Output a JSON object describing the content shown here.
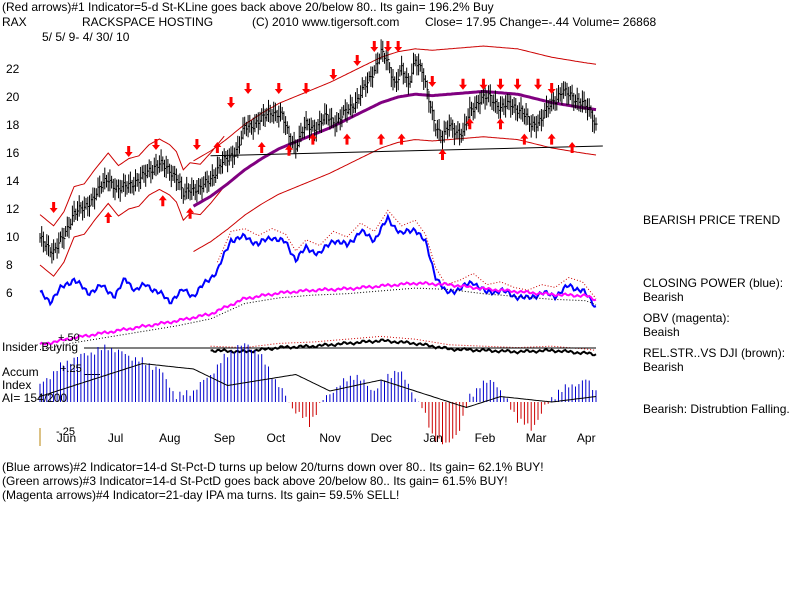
{
  "header": {
    "line1": "(Red arrows)#1 Indicator=5-d St-KLine goes back above 20/below 80.. Its gain= 196.2% Buy",
    "symbol": "RAX",
    "company": "RACKSPACE HOSTING",
    "copyright": "(C) 2010 www.tigersoft.com",
    "quote": "Close=  17.95  Change=-.44 Volume= 26868",
    "dates": "5/ 5/ 9-  4/ 30/ 10"
  },
  "footer": {
    "line1": "(Blue arrows)#2 Indicator=14-d St-Pct-D turns up below 20/turns down over 80.. Its gain= 62.1% BUY!",
    "line2": "(Green arrows)#3 Indicator=14-d St-PctD goes back above 20/below 80.. Its gain= 61.5% BUY!",
    "line3": "(Magenta arrows)#4 Indicator=21-day IPA ma turns. Its gain= 59.5% SELL!"
  },
  "panel_labels": {
    "insider": "Insider Buying",
    "plus50": "+.50",
    "plus25": "+.25",
    "minus25": "-.25",
    "accum": "Accum",
    "index": "Index",
    "ai": "AI= 154/200"
  },
  "right_panel": {
    "trend": "BEARISH PRICE TREND",
    "cp_title": "CLOSING POWER (blue):",
    "cp_value": "Bearish",
    "obv_title": "OBV (magenta):",
    "obv_value": "Beaish",
    "rs_title": "REL.STR..VS DJI (brown):",
    "rs_value": "Bearish",
    "dist": "Bearish: Distrubtion Falling."
  },
  "colors": {
    "price": "#000000",
    "band": "#cc0000",
    "ma": "#800080",
    "closing_power": "#0000ff",
    "obv": "#ff00ff",
    "rel_str": "#5a2800",
    "accum_pos": "#0000cc",
    "accum_neg": "#cc0000",
    "arrow": "#ff0000",
    "support": "#000000"
  },
  "chart_data": {
    "type": "line",
    "title": "RACKSPACE HOSTING (RAX) daily price with TigerSoft indicators",
    "y_ticks": [
      6,
      8,
      10,
      12,
      14,
      16,
      18,
      20,
      22
    ],
    "ylim": [
      4.5,
      24
    ],
    "x_ticks": [
      "Jun",
      "Jul",
      "Aug",
      "Sep",
      "Oct",
      "Nov",
      "Dec",
      "Jan",
      "Feb",
      "Mar",
      "Apr"
    ],
    "price_keypoints": [
      [
        0,
        9.8
      ],
      [
        8,
        9.0
      ],
      [
        14,
        10.0
      ],
      [
        20,
        11.8
      ],
      [
        26,
        12.0
      ],
      [
        32,
        13.0
      ],
      [
        40,
        14.2
      ],
      [
        46,
        13.3
      ],
      [
        52,
        13.8
      ],
      [
        58,
        14.0
      ],
      [
        64,
        14.8
      ],
      [
        70,
        15.2
      ],
      [
        76,
        14.8
      ],
      [
        80,
        14.3
      ],
      [
        84,
        13.0
      ],
      [
        88,
        13.5
      ],
      [
        94,
        13.4
      ],
      [
        100,
        14.2
      ],
      [
        108,
        15.4
      ],
      [
        116,
        16.3
      ],
      [
        120,
        17.8
      ],
      [
        124,
        18.0
      ],
      [
        130,
        18.4
      ],
      [
        136,
        19.0
      ],
      [
        142,
        18.6
      ],
      [
        146,
        17.2
      ],
      [
        150,
        16.5
      ],
      [
        156,
        18.0
      ],
      [
        162,
        17.8
      ],
      [
        168,
        18.6
      ],
      [
        174,
        18.2
      ],
      [
        180,
        19.0
      ],
      [
        186,
        19.8
      ],
      [
        192,
        21.0
      ],
      [
        196,
        22.0
      ],
      [
        200,
        23.2
      ],
      [
        204,
        22.4
      ],
      [
        208,
        21.0
      ],
      [
        212,
        22.0
      ],
      [
        216,
        20.8
      ],
      [
        220,
        22.8
      ],
      [
        224,
        21.8
      ],
      [
        228,
        19.8
      ],
      [
        232,
        18.0
      ],
      [
        236,
        17.0
      ],
      [
        240,
        18.0
      ],
      [
        244,
        17.6
      ],
      [
        248,
        17.3
      ],
      [
        252,
        19.0
      ],
      [
        258,
        19.8
      ],
      [
        264,
        20.0
      ],
      [
        270,
        19.2
      ],
      [
        276,
        19.5
      ],
      [
        282,
        19.0
      ],
      [
        288,
        18.0
      ],
      [
        294,
        18.4
      ],
      [
        300,
        19.6
      ],
      [
        306,
        20.4
      ],
      [
        312,
        20.0
      ],
      [
        318,
        19.6
      ],
      [
        322,
        19.0
      ],
      [
        326,
        18.0
      ]
    ],
    "moving_average_keypoints": [
      [
        90,
        12.2
      ],
      [
        100,
        12.9
      ],
      [
        110,
        13.8
      ],
      [
        120,
        14.8
      ],
      [
        130,
        15.6
      ],
      [
        140,
        16.3
      ],
      [
        150,
        16.8
      ],
      [
        160,
        17.3
      ],
      [
        170,
        17.8
      ],
      [
        180,
        18.4
      ],
      [
        190,
        19.0
      ],
      [
        200,
        19.6
      ],
      [
        210,
        20.0
      ],
      [
        220,
        20.2
      ],
      [
        230,
        20.1
      ],
      [
        240,
        20.2
      ],
      [
        250,
        20.3
      ],
      [
        260,
        20.4
      ],
      [
        270,
        20.3
      ],
      [
        280,
        20.2
      ],
      [
        290,
        19.9
      ],
      [
        300,
        19.6
      ],
      [
        310,
        19.4
      ],
      [
        320,
        19.2
      ],
      [
        326,
        19.1
      ]
    ],
    "band_width": 1.8,
    "support_line": {
      "start": [
        100,
        15.8
      ],
      "end": [
        330,
        16.5
      ]
    },
    "closing_power_keypoints": [
      [
        0,
        6.0
      ],
      [
        6,
        5.4
      ],
      [
        12,
        6.3
      ],
      [
        20,
        7.0
      ],
      [
        28,
        6.0
      ],
      [
        36,
        6.5
      ],
      [
        44,
        5.8
      ],
      [
        50,
        7.0
      ],
      [
        56,
        6.2
      ],
      [
        62,
        6.6
      ],
      [
        70,
        6.0
      ],
      [
        76,
        5.4
      ],
      [
        84,
        6.2
      ],
      [
        90,
        5.8
      ],
      [
        96,
        6.6
      ],
      [
        104,
        7.6
      ],
      [
        112,
        9.8
      ],
      [
        120,
        10.0
      ],
      [
        128,
        9.5
      ],
      [
        136,
        10.0
      ],
      [
        144,
        9.6
      ],
      [
        150,
        8.4
      ],
      [
        156,
        9.2
      ],
      [
        164,
        8.8
      ],
      [
        172,
        9.8
      ],
      [
        180,
        9.4
      ],
      [
        188,
        10.4
      ],
      [
        196,
        9.8
      ],
      [
        204,
        11.3
      ],
      [
        212,
        10.2
      ],
      [
        220,
        10.6
      ],
      [
        226,
        9.6
      ],
      [
        232,
        7.2
      ],
      [
        238,
        6.0
      ],
      [
        246,
        6.3
      ],
      [
        254,
        6.8
      ],
      [
        262,
        6.0
      ],
      [
        270,
        6.2
      ],
      [
        278,
        5.8
      ],
      [
        286,
        5.6
      ],
      [
        294,
        6.0
      ],
      [
        302,
        5.8
      ],
      [
        310,
        6.5
      ],
      [
        318,
        6.2
      ],
      [
        326,
        5.0
      ]
    ],
    "obv_keypoints": [
      [
        0,
        2.3
      ],
      [
        20,
        2.8
      ],
      [
        40,
        3.2
      ],
      [
        60,
        3.6
      ],
      [
        80,
        4.0
      ],
      [
        100,
        4.5
      ],
      [
        120,
        5.6
      ],
      [
        140,
        6.0
      ],
      [
        160,
        6.2
      ],
      [
        180,
        6.3
      ],
      [
        200,
        6.5
      ],
      [
        220,
        6.7
      ],
      [
        240,
        6.6
      ],
      [
        260,
        6.3
      ],
      [
        280,
        6.1
      ],
      [
        300,
        5.9
      ],
      [
        320,
        5.8
      ],
      [
        326,
        5.5
      ]
    ],
    "rel_str_keypoints": [
      [
        100,
        1.9
      ],
      [
        120,
        1.8
      ],
      [
        140,
        2.1
      ],
      [
        160,
        2.2
      ],
      [
        180,
        2.4
      ],
      [
        200,
        2.6
      ],
      [
        220,
        2.4
      ],
      [
        240,
        2.0
      ],
      [
        260,
        1.9
      ],
      [
        280,
        1.8
      ],
      [
        300,
        1.9
      ],
      [
        320,
        1.7
      ],
      [
        326,
        1.6
      ]
    ],
    "accum_keypoints": [
      [
        0,
        0.15
      ],
      [
        10,
        0.3
      ],
      [
        20,
        0.4
      ],
      [
        40,
        0.5
      ],
      [
        55,
        0.4
      ],
      [
        70,
        0.3
      ],
      [
        80,
        0.05
      ],
      [
        90,
        0.1
      ],
      [
        100,
        0.25
      ],
      [
        108,
        0.4
      ],
      [
        115,
        0.5
      ],
      [
        122,
        0.52
      ],
      [
        128,
        0.45
      ],
      [
        134,
        0.3
      ],
      [
        140,
        0.15
      ],
      [
        148,
        -0.05
      ],
      [
        158,
        -0.2
      ],
      [
        165,
        0.0
      ],
      [
        175,
        0.15
      ],
      [
        185,
        0.25
      ],
      [
        195,
        0.1
      ],
      [
        202,
        0.2
      ],
      [
        210,
        0.3
      ],
      [
        218,
        0.1
      ],
      [
        224,
        -0.05
      ],
      [
        230,
        -0.3
      ],
      [
        238,
        -0.4
      ],
      [
        246,
        -0.25
      ],
      [
        252,
        0.05
      ],
      [
        258,
        0.15
      ],
      [
        266,
        0.2
      ],
      [
        272,
        0.05
      ],
      [
        280,
        -0.15
      ],
      [
        288,
        -0.25
      ],
      [
        296,
        -0.05
      ],
      [
        304,
        0.1
      ],
      [
        312,
        0.15
      ],
      [
        320,
        0.2
      ],
      [
        326,
        0.1
      ]
    ],
    "accum_ma_keypoints": [
      [
        0,
        0.05
      ],
      [
        30,
        0.2
      ],
      [
        60,
        0.35
      ],
      [
        90,
        0.3
      ],
      [
        110,
        0.15
      ],
      [
        130,
        0.2
      ],
      [
        150,
        0.25
      ],
      [
        170,
        0.1
      ],
      [
        200,
        0.2
      ],
      [
        230,
        0.05
      ],
      [
        250,
        -0.05
      ],
      [
        270,
        0.05
      ],
      [
        300,
        0.0
      ],
      [
        326,
        0.05
      ]
    ],
    "red_arrows_down": [
      [
        8,
        12.5
      ],
      [
        52,
        16.5
      ],
      [
        68,
        17.0
      ],
      [
        92,
        17.0
      ],
      [
        112,
        20.0
      ],
      [
        122,
        21.0
      ],
      [
        140,
        21.0
      ],
      [
        156,
        21.0
      ],
      [
        172,
        22.0
      ],
      [
        186,
        23.0
      ],
      [
        196,
        24.0
      ],
      [
        204,
        24.0
      ],
      [
        210,
        24.0
      ],
      [
        230,
        21.5
      ],
      [
        248,
        21.3
      ],
      [
        260,
        21.3
      ],
      [
        270,
        21.3
      ],
      [
        280,
        21.3
      ],
      [
        292,
        21.3
      ],
      [
        300,
        21.0
      ]
    ],
    "red_arrows_up": [
      [
        40,
        11.0
      ],
      [
        72,
        12.2
      ],
      [
        88,
        11.3
      ],
      [
        104,
        16.0
      ],
      [
        130,
        16.0
      ],
      [
        146,
        15.8
      ],
      [
        160,
        16.6
      ],
      [
        180,
        16.6
      ],
      [
        200,
        16.6
      ],
      [
        212,
        16.6
      ],
      [
        236,
        15.5
      ],
      [
        252,
        17.7
      ],
      [
        270,
        17.7
      ],
      [
        284,
        16.6
      ],
      [
        300,
        16.6
      ],
      [
        312,
        16.0
      ]
    ]
  }
}
